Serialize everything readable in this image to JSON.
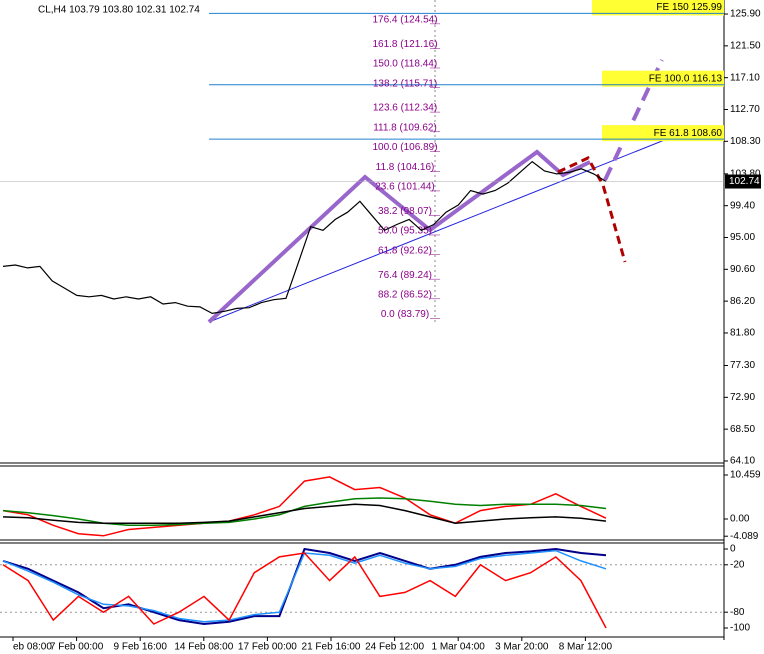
{
  "header": "CL,H4  103.79 103.80 102.31 102.74",
  "chart_data": [
    {
      "type": "line",
      "color": "#000000",
      "values": [
        91.0,
        91.2,
        90.8,
        91.0,
        89.0,
        88.0,
        87.0,
        86.8,
        87.0,
        86.5,
        86.8,
        86.5,
        86.8,
        85.8,
        86.0,
        85.5,
        85.4,
        84.5,
        84.8,
        85.2,
        85.3,
        86.0,
        86.4,
        86.6,
        91.5,
        96.5,
        96.0,
        97.5,
        98.5,
        100.0,
        98.0,
        96.0,
        96.8,
        97.5,
        96.0,
        96.8,
        98.5,
        99.5,
        101.5,
        101.0,
        101.5,
        102.5,
        104.0,
        105.5,
        104.2,
        103.8,
        104.0,
        104.5,
        103.8,
        102.74
      ],
      "ylim": [
        63.82,
        127.84
      ],
      "yticks": [
        {
          "value": 125.9,
          "label": "125.90"
        },
        {
          "value": 121.5,
          "label": "121.50"
        },
        {
          "value": 117.1,
          "label": "117.10"
        },
        {
          "value": 112.7,
          "label": "112.70"
        },
        {
          "value": 108.3,
          "label": "108.30"
        },
        {
          "value": 103.8,
          "label": "103.80"
        },
        {
          "value": 99.4,
          "label": "99.40"
        },
        {
          "value": 95.0,
          "label": "95.00"
        },
        {
          "value": 90.6,
          "label": "90.60"
        },
        {
          "value": 86.2,
          "label": "86.20"
        },
        {
          "value": 81.8,
          "label": "81.80"
        },
        {
          "value": 77.3,
          "label": "77.30"
        },
        {
          "value": 72.9,
          "label": "72.90"
        },
        {
          "value": 68.5,
          "label": "68.50"
        },
        {
          "value": 64.1,
          "label": "64.10"
        }
      ],
      "current_price": 102.74,
      "fib_levels": [
        {
          "value": 124.54,
          "label": "176.4 (124.54)"
        },
        {
          "value": 121.16,
          "label": "161.8 (121.16)"
        },
        {
          "value": 118.44,
          "label": "150.0 (118.44)"
        },
        {
          "value": 115.71,
          "label": "138.2 (115.71)"
        },
        {
          "value": 112.34,
          "label": "123.6 (112.34)"
        },
        {
          "value": 109.62,
          "label": "111.8 (109.62)"
        },
        {
          "value": 106.89,
          "label": "100.0 (106.89)"
        },
        {
          "value": 104.16,
          "label": "11.8 (104.16)"
        },
        {
          "value": 101.44,
          "label": "23.6 (101.44)"
        },
        {
          "value": 98.07,
          "label": "38.2 (98.07)"
        },
        {
          "value": 95.35,
          "label": "50.0 (95.35)"
        },
        {
          "value": 92.62,
          "label": "61.8 (92.62)"
        },
        {
          "value": 89.24,
          "label": "76.4 (89.24)"
        },
        {
          "value": 86.52,
          "label": "88.2 (86.52)"
        },
        {
          "value": 83.79,
          "label": "0.0 (83.79)"
        }
      ],
      "fe_levels": [
        {
          "value": 125.99,
          "label": "FE 150 125.99"
        },
        {
          "value": 116.13,
          "label": "FE 100.0 116.13"
        },
        {
          "value": 108.6,
          "label": "FE 61.8 108.60"
        }
      ],
      "x_labels": [
        "eb 08:00",
        "7 Feb 00:00",
        "9 Feb 16:00",
        "14 Feb 08:00",
        "17 Feb 00:00",
        "21 Feb 16:00",
        "24 Feb 12:00",
        "1 Mar 04:00",
        "3 Mar 20:00",
        "8 Mar 12:00"
      ]
    },
    {
      "type": "line",
      "series": [
        {
          "color": "#ff0000",
          "values": [
            2.0,
            1.0,
            -1.5,
            -3.5,
            -4.0,
            -2.5,
            -2.0,
            -1.5,
            -1.0,
            -0.5,
            1.0,
            3.0,
            9.0,
            10.0,
            7.0,
            7.5,
            5.0,
            1.0,
            -1.0,
            2.0,
            3.0,
            3.5,
            6.0,
            3.0,
            0.2
          ]
        },
        {
          "color": "#008000",
          "values": [
            2.0,
            1.5,
            0.8,
            0.0,
            -1.0,
            -1.5,
            -1.5,
            -1.3,
            -1.0,
            -0.8,
            0.0,
            1.0,
            3.0,
            4.0,
            4.8,
            5.0,
            4.8,
            4.2,
            3.5,
            3.2,
            3.5,
            3.5,
            3.5,
            3.2,
            2.5
          ]
        },
        {
          "color": "#000000",
          "values": [
            0.5,
            0.3,
            -0.3,
            -0.8,
            -1.0,
            -1.0,
            -1.0,
            -1.0,
            -0.8,
            -0.5,
            0.5,
            1.5,
            2.5,
            3.0,
            3.5,
            3.2,
            2.0,
            0.5,
            -1.0,
            -0.5,
            0.0,
            0.3,
            0.5,
            0.2,
            -0.5
          ]
        }
      ],
      "ylim": [
        -4.99,
        12.6
      ],
      "yticks": [
        10.459,
        {
          "value": 0,
          "label": "0.00"
        },
        -4.089
      ]
    },
    {
      "type": "line",
      "series": [
        {
          "color": "#00008b",
          "values": [
            -15,
            -25,
            -40,
            -55,
            -75,
            -70,
            -80,
            -90,
            -95,
            -92,
            -85,
            -85,
            0,
            -5,
            -15,
            -5,
            -15,
            -25,
            -20,
            -10,
            -5,
            -3,
            0,
            -5,
            -8
          ]
        },
        {
          "color": "#1e90ff",
          "values": [
            -15,
            -28,
            -42,
            -58,
            -70,
            -72,
            -78,
            -88,
            -92,
            -90,
            -83,
            -80,
            -5,
            -8,
            -18,
            -8,
            -18,
            -25,
            -22,
            -12,
            -8,
            -5,
            -2,
            -15,
            -25
          ]
        },
        {
          "color": "#ff0000",
          "values": [
            -20,
            -40,
            -90,
            -60,
            -80,
            -60,
            -95,
            -80,
            -60,
            -90,
            -30,
            -10,
            -5,
            -40,
            -10,
            -60,
            -55,
            -40,
            -60,
            -20,
            -40,
            -30,
            -10,
            -40,
            -100
          ]
        }
      ],
      "ylim": [
        -111.4,
        7.6
      ],
      "yticks": [
        0,
        -20,
        -80,
        -100
      ]
    }
  ]
}
